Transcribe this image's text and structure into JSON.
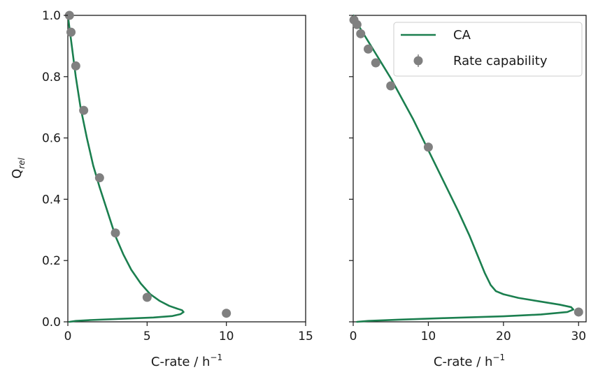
{
  "chart_data": [
    {
      "type": "line",
      "panel": "left",
      "xlabel_main": "C-rate / h",
      "xlabel_sup": "−1",
      "ylabel_main": "Q",
      "ylabel_sub": "rel",
      "xlim": [
        0,
        15
      ],
      "ylim": [
        0,
        1.0
      ],
      "xticks": [
        0,
        5,
        10,
        15
      ],
      "yticks": [
        0.0,
        0.2,
        0.4,
        0.6,
        0.8,
        1.0
      ],
      "xtick_labels": [
        "0",
        "5",
        "10",
        "15"
      ],
      "ytick_labels": [
        "0.0",
        "0.2",
        "0.4",
        "0.6",
        "0.8",
        "1.0"
      ],
      "grid": false,
      "series": [
        {
          "name": "CA",
          "kind": "line",
          "color": "#1b7f4f",
          "x": [
            0.0,
            0.1,
            0.25,
            0.5,
            0.8,
            1.2,
            1.6,
            2.0,
            2.5,
            3.0,
            3.5,
            4.0,
            4.6,
            5.2,
            5.8,
            6.4,
            6.9,
            7.2,
            7.3,
            7.1,
            6.6,
            5.4,
            3.5,
            1.5,
            0.5,
            0.1
          ],
          "y": [
            1.0,
            0.96,
            0.9,
            0.8,
            0.7,
            0.6,
            0.51,
            0.44,
            0.36,
            0.28,
            0.22,
            0.17,
            0.125,
            0.09,
            0.068,
            0.052,
            0.043,
            0.038,
            0.032,
            0.025,
            0.019,
            0.014,
            0.01,
            0.006,
            0.003,
            0.0
          ]
        },
        {
          "name": "Rate capability",
          "kind": "scatter",
          "color": "#808080",
          "x": [
            0.1,
            0.2,
            0.5,
            1.0,
            2.0,
            3.0,
            5.0,
            10.0
          ],
          "y": [
            1.0,
            0.945,
            0.835,
            0.69,
            0.47,
            0.29,
            0.08,
            0.028
          ]
        }
      ]
    },
    {
      "type": "line",
      "panel": "right",
      "xlabel_main": "C-rate / h",
      "xlabel_sup": "−1",
      "xlim": [
        0,
        31
      ],
      "ylim": [
        0,
        1.0
      ],
      "xticks": [
        0,
        10,
        20,
        30
      ],
      "xtick_labels": [
        "0",
        "10",
        "20",
        "30"
      ],
      "yticks": [
        0.0,
        0.2,
        0.4,
        0.6,
        0.8,
        1.0
      ],
      "grid": false,
      "legend_position": "top-right",
      "legend": [
        "CA",
        "Rate capability"
      ],
      "series": [
        {
          "name": "CA",
          "kind": "line",
          "color": "#1b7f4f",
          "x": [
            0.0,
            0.3,
            1.0,
            2.0,
            3.0,
            4.0,
            5.0,
            6.0,
            8.0,
            10.0,
            12.0,
            14.0,
            15.5,
            16.5,
            17.5,
            18.3,
            19.0,
            20.0,
            22.0,
            25.0,
            27.5,
            29.0,
            29.3,
            28.5,
            25.0,
            20.0,
            12.0,
            6.0,
            2.0,
            0.5
          ],
          "y": [
            1.0,
            0.985,
            0.955,
            0.915,
            0.875,
            0.835,
            0.795,
            0.75,
            0.66,
            0.56,
            0.46,
            0.36,
            0.28,
            0.22,
            0.16,
            0.12,
            0.1,
            0.09,
            0.078,
            0.066,
            0.056,
            0.048,
            0.04,
            0.032,
            0.024,
            0.018,
            0.012,
            0.007,
            0.003,
            0.0
          ]
        },
        {
          "name": "Rate capability",
          "kind": "scatter",
          "color": "#808080",
          "x": [
            0.1,
            0.5,
            1.0,
            2.0,
            3.0,
            5.0,
            10.0,
            30.0
          ],
          "y": [
            0.985,
            0.97,
            0.94,
            0.89,
            0.845,
            0.77,
            0.57,
            0.032
          ]
        }
      ]
    }
  ]
}
